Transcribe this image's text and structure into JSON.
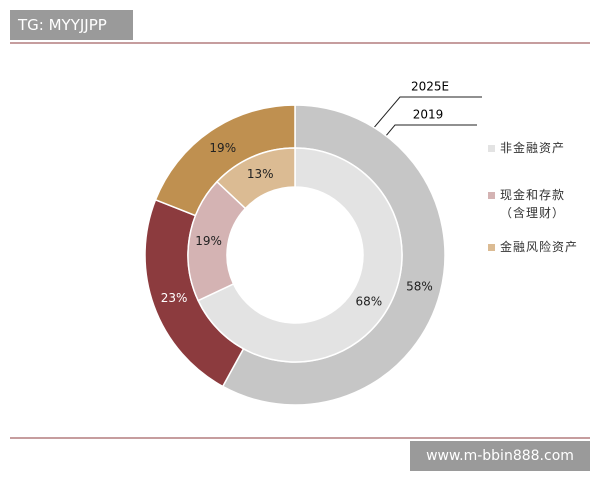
{
  "header": {
    "tag": "TG: MYYJJPP"
  },
  "footer": {
    "watermark": "www.m-bbin888.com"
  },
  "chart_data": {
    "type": "donut",
    "categories": [
      "非金融资产",
      "现金和存款\n（含理财）",
      "金融风险资产"
    ],
    "series": [
      {
        "name": "2025E",
        "colors": [
          "#c6c6c6",
          "#8c3b3e",
          "#bf9050"
        ],
        "values": [
          58,
          23,
          19
        ],
        "value_labels": [
          "58%",
          "23%",
          "19%"
        ]
      },
      {
        "name": "2019",
        "colors": [
          "#e3e3e3",
          "#d4b3b3",
          "#dbbb93"
        ],
        "values": [
          68,
          19,
          13
        ],
        "value_labels": [
          "68%",
          "19%",
          "13%"
        ]
      }
    ]
  }
}
